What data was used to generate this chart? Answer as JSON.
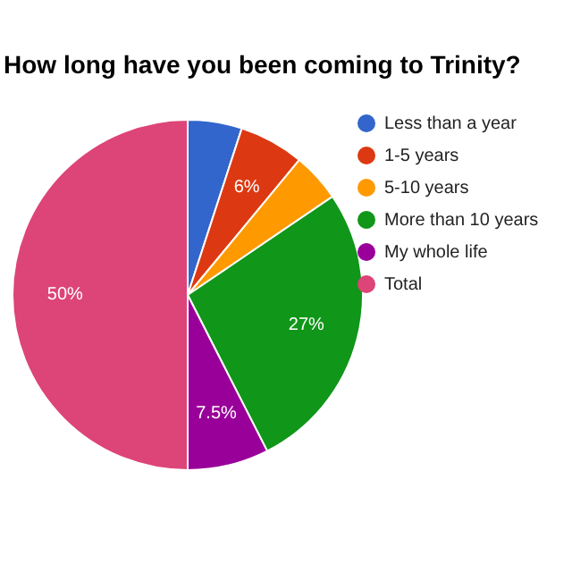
{
  "chart_data": {
    "type": "pie",
    "title": "How long have you been coming to Trinity?",
    "categories": [
      "Less than a year",
      "1-5 years",
      "5-10 years",
      "More than 10 years",
      "My whole life",
      "Total"
    ],
    "values": [
      5,
      6,
      4.5,
      27,
      7.5,
      50
    ],
    "colors": [
      "#3366cc",
      "#dc3912",
      "#ff9900",
      "#109618",
      "#990099",
      "#dd4477"
    ],
    "value_labels": [
      null,
      "6%",
      null,
      "27%",
      "7.5%",
      "50%"
    ],
    "legend": "top right"
  }
}
